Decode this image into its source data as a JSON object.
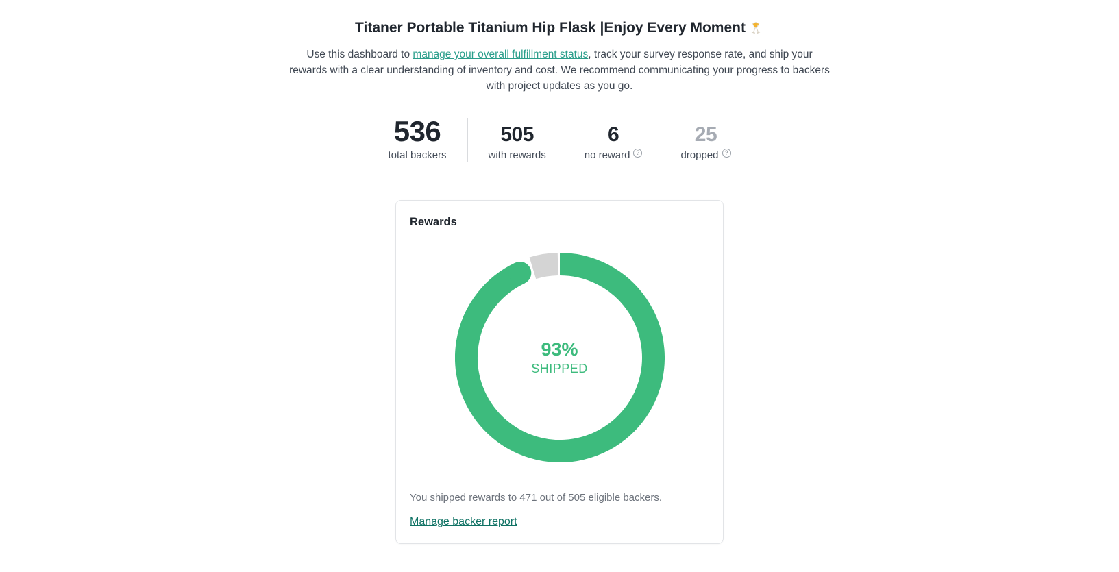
{
  "page": {
    "title": "Titaner Portable Titanium Hip Flask |Enjoy Every Moment",
    "title_emoji": "clinking-glasses",
    "intro": {
      "before_link": "Use this dashboard to ",
      "link_text": "manage your overall fulfillment status",
      "after_link": ", track your survey response rate, and ship your rewards with a clear understanding of inventory and cost. We recommend communicating your progress to backers with project updates as you go."
    }
  },
  "stats": [
    {
      "value": "536",
      "label": "total backers",
      "emphasis": "large",
      "has_info": false,
      "muted": false
    },
    {
      "value": "505",
      "label": "with rewards",
      "has_info": false,
      "muted": false
    },
    {
      "value": "6",
      "label": "no reward",
      "has_info": true,
      "muted": false
    },
    {
      "value": "25",
      "label": "dropped",
      "has_info": true,
      "muted": true
    }
  ],
  "rewards_card": {
    "title": "Rewards",
    "summary": "You shipped rewards to 471 out of 505 eligible backers.",
    "link_label": "Manage backer report"
  },
  "chart_data": {
    "type": "pie",
    "subtype": "donut",
    "title": "Rewards",
    "categories": [
      "Shipped",
      "Not shipped"
    ],
    "values": [
      93,
      7
    ],
    "colors": [
      "#3dbb7d",
      "#d4d4d4"
    ],
    "center_label": {
      "percent": "93%",
      "caption": "SHIPPED"
    },
    "source_numbers": {
      "shipped_backers": 471,
      "eligible_backers": 505
    },
    "legend_position": "none",
    "start_angle_deg": 0,
    "direction": "clockwise"
  },
  "colors": {
    "accent_green": "#3dbb7d",
    "donut_remainder": "#d4d4d4",
    "link_teal": "#2a9e8b",
    "link_dark_teal": "#0f7264",
    "muted_gray": "#a6abb3"
  }
}
